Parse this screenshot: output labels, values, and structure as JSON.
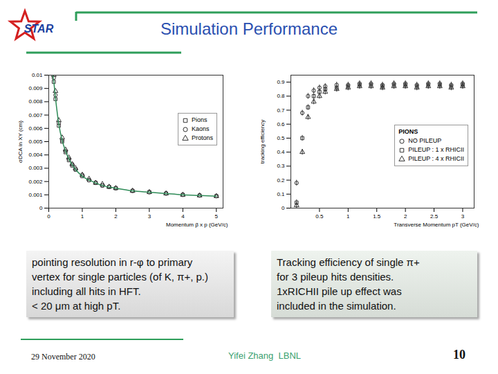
{
  "slide": {
    "logo": "STAR",
    "title": "Simulation Performance",
    "captions": [
      [
        "pointing resolution in r-φ to primary",
        "vertex for single particles (of K, π+, p.)",
        "including all hits in HFT.",
        "< 20 μm at high pT."
      ],
      [
        "Tracking efficiency of single π+",
        "for 3 pileup hits densities.",
        "1xRICHII pile up effect was",
        "included in the simulation."
      ]
    ],
    "footer": {
      "date": "29 November 2020",
      "author": "Yifei Zhang  LBNL",
      "page": "10"
    }
  },
  "chart_data": [
    {
      "type": "scatter",
      "xlabel": "Momentum β x p (GeV/c)",
      "ylabel": "σDCA in XY (cm)",
      "x": [
        0.15,
        0.2,
        0.3,
        0.4,
        0.5,
        0.6,
        0.7,
        0.8,
        1.0,
        1.2,
        1.4,
        1.6,
        1.8,
        2.0,
        2.5,
        3.0,
        3.5,
        4.0,
        4.5,
        5.0
      ],
      "series": [
        {
          "name": "Pions",
          "color": "#333333",
          "marker": "square",
          "values": [
            0.0095,
            0.0082,
            0.0062,
            0.005,
            0.0042,
            0.0036,
            0.0032,
            0.0029,
            0.0024,
            0.0021,
            0.0019,
            0.0017,
            0.0016,
            0.0015,
            0.0013,
            0.0012,
            0.0011,
            0.001,
            0.00095,
            0.0009
          ]
        },
        {
          "name": "Kaons",
          "color": "#333333",
          "marker": "circle",
          "values": [
            0.0098,
            0.0085,
            0.0064,
            0.0051,
            0.0043,
            0.0037,
            0.0033,
            0.0029,
            0.0025,
            0.0021,
            0.0019,
            0.0017,
            0.0016,
            0.0015,
            0.0013,
            0.0012,
            0.0011,
            0.001,
            0.00095,
            0.0009
          ]
        },
        {
          "name": "Protons",
          "color": "#333333",
          "marker": "triangle",
          "values": [
            0.01,
            0.0088,
            0.0066,
            0.0053,
            0.0044,
            0.0038,
            0.0033,
            0.003,
            0.0025,
            0.0022,
            0.0019,
            0.0018,
            0.0016,
            0.0015,
            0.0013,
            0.0012,
            0.0011,
            0.001,
            0.00095,
            0.0009
          ]
        }
      ],
      "curve": {
        "color": "#2e8b57",
        "x": [
          0.12,
          0.15,
          0.2,
          0.3,
          0.4,
          0.5,
          0.6,
          0.8,
          1.0,
          1.3,
          1.6,
          2.0,
          2.5,
          3.0,
          3.5,
          4.0,
          4.5,
          5.0
        ],
        "values": [
          0.01,
          0.0095,
          0.0083,
          0.0063,
          0.0051,
          0.0043,
          0.0037,
          0.0029,
          0.0024,
          0.002,
          0.0017,
          0.0015,
          0.0013,
          0.0012,
          0.0011,
          0.001,
          0.00095,
          0.0009
        ]
      },
      "xlim": [
        0,
        5.2
      ],
      "ylim": [
        0,
        0.01
      ],
      "xticks": [
        0,
        1,
        2,
        3,
        4,
        5
      ],
      "yticks": [
        0,
        0.001,
        0.002,
        0.003,
        0.004,
        0.005,
        0.006,
        0.007,
        0.008,
        0.009,
        0.01
      ],
      "legend": "upper right"
    },
    {
      "type": "scatter",
      "xlabel": "Transverse Momentum pT (GeV/c)",
      "ylabel": "tracking efficiency",
      "legend_title": "PIONS",
      "x": [
        0.1,
        0.2,
        0.3,
        0.4,
        0.5,
        0.6,
        0.8,
        1.0,
        1.2,
        1.4,
        1.6,
        1.8,
        2.0,
        2.2,
        2.4,
        2.6,
        2.8,
        3.0
      ],
      "series": [
        {
          "name": "NO PILEUP",
          "color": "#333333",
          "marker": "circle",
          "values": [
            0.18,
            0.68,
            0.8,
            0.84,
            0.86,
            0.87,
            0.88,
            0.88,
            0.89,
            0.89,
            0.88,
            0.89,
            0.89,
            0.88,
            0.89,
            0.89,
            0.88,
            0.89
          ],
          "errors": [
            0.02,
            0.02,
            0.02,
            0.02,
            0.02,
            0.02,
            0.02,
            0.02,
            0.02,
            0.02,
            0.02,
            0.02,
            0.02,
            0.02,
            0.02,
            0.02,
            0.02,
            0.02
          ]
        },
        {
          "name": "PILEUP : 1 x RHICII",
          "color": "#333333",
          "marker": "square",
          "values": [
            0.04,
            0.5,
            0.72,
            0.8,
            0.83,
            0.85,
            0.86,
            0.87,
            0.88,
            0.88,
            0.87,
            0.88,
            0.88,
            0.87,
            0.88,
            0.88,
            0.87,
            0.88
          ],
          "errors": [
            0.02,
            0.02,
            0.02,
            0.02,
            0.02,
            0.02,
            0.02,
            0.02,
            0.02,
            0.02,
            0.02,
            0.02,
            0.02,
            0.02,
            0.02,
            0.02,
            0.02,
            0.02
          ]
        },
        {
          "name": "PILEUP : 4 x RHICII",
          "color": "#333333",
          "marker": "triangle",
          "values": [
            0.02,
            0.4,
            0.65,
            0.76,
            0.8,
            0.83,
            0.85,
            0.86,
            0.87,
            0.87,
            0.86,
            0.87,
            0.87,
            0.86,
            0.87,
            0.87,
            0.86,
            0.87
          ],
          "errors": [
            0.02,
            0.02,
            0.02,
            0.02,
            0.02,
            0.02,
            0.02,
            0.02,
            0.02,
            0.02,
            0.02,
            0.02,
            0.02,
            0.02,
            0.02,
            0.02,
            0.02,
            0.02
          ]
        }
      ],
      "xlim": [
        0,
        3.2
      ],
      "ylim": [
        0,
        0.95
      ],
      "xticks": [
        0.5,
        1,
        1.5,
        2,
        2.5,
        3
      ],
      "yticks": [
        0,
        0.1,
        0.2,
        0.3,
        0.4,
        0.5,
        0.6,
        0.7,
        0.8,
        0.9
      ],
      "legend": "lower right"
    }
  ]
}
